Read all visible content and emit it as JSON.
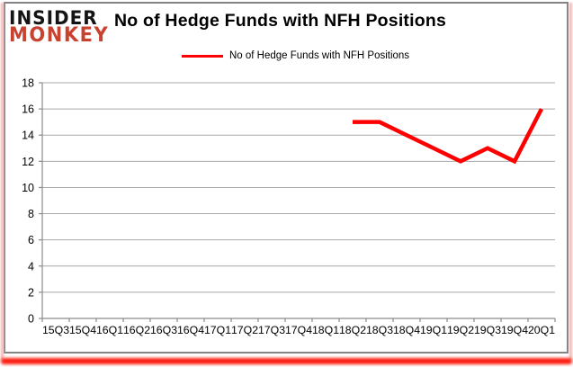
{
  "logo": {
    "line1": "INSIDER",
    "line2": "MONKEY"
  },
  "colors": {
    "series_red": "#ff0000",
    "logo_red": "#c7422f",
    "gridline_gray": "#a8a8a8",
    "axis_gray": "#8c8c8c",
    "frame_gray": "#848484",
    "text_black": "#000000"
  },
  "chart_data": {
    "type": "line",
    "title": "No of Hedge Funds with NFH Positions",
    "xlabel": "",
    "ylabel": "",
    "categories": [
      "15Q3",
      "15Q4",
      "16Q1",
      "16Q2",
      "16Q3",
      "16Q4",
      "17Q1",
      "17Q2",
      "17Q3",
      "17Q4",
      "18Q1",
      "18Q2",
      "18Q3",
      "18Q4",
      "19Q1",
      "19Q2",
      "19Q3",
      "19Q4",
      "20Q1"
    ],
    "series": [
      {
        "name": "No of Hedge Funds with NFH Positions",
        "color": "#ff0000",
        "values": [
          null,
          null,
          null,
          null,
          null,
          null,
          null,
          null,
          null,
          null,
          null,
          15,
          15,
          14,
          13,
          12,
          13,
          12,
          16
        ]
      }
    ],
    "ylim": [
      0,
      18
    ],
    "ytick_step": 2,
    "grid": true,
    "legend_position": "top-center"
  }
}
